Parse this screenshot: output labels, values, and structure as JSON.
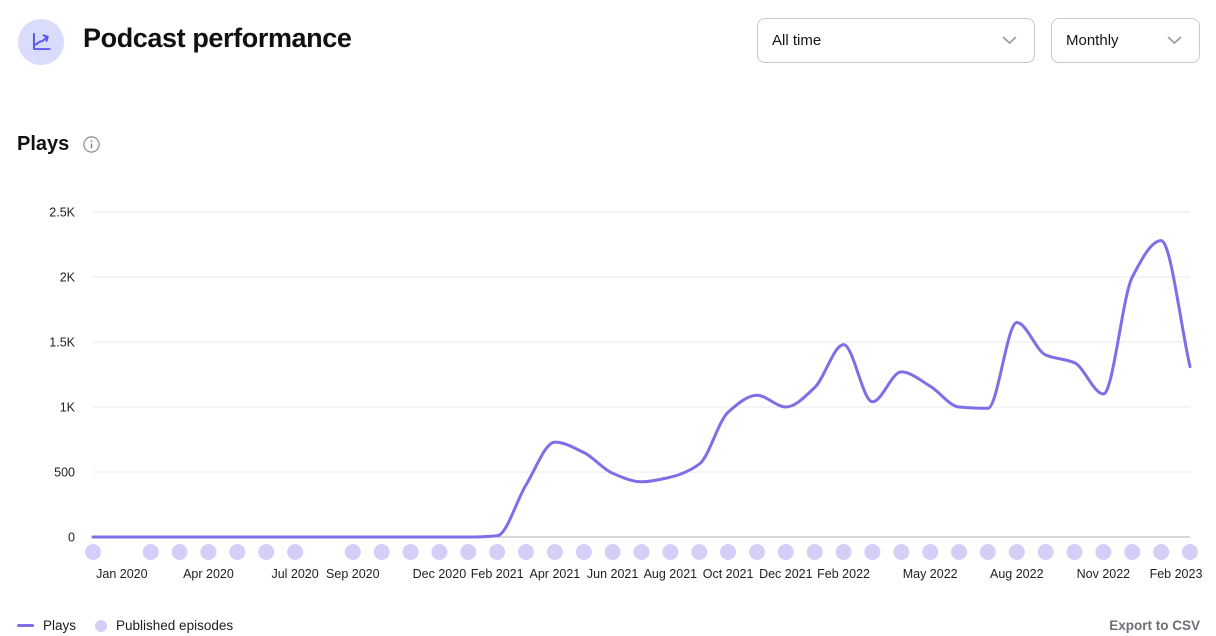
{
  "header": {
    "title": "Podcast performance",
    "range_select": {
      "value": "All time"
    },
    "granularity_select": {
      "value": "Monthly"
    }
  },
  "section": {
    "title": "Plays"
  },
  "legend": {
    "plays_label": "Plays",
    "episodes_label": "Published episodes"
  },
  "export_label": "Export to CSV",
  "colors": {
    "line": "#7C6FE8",
    "episode_dot": "#D6CEF7",
    "grid": "#EAEAEA",
    "zero_axis": "#AFAFAF",
    "axis_text": "#222222",
    "icon_bg": "#D9DCFA",
    "icon_fg": "#5A58EE",
    "chevron": "#9A9A9A",
    "muted_text": "#6E6E76"
  },
  "chart_data": {
    "type": "line",
    "title": "Plays",
    "xlabel": "",
    "ylabel": "Plays",
    "ylim": [
      0,
      2500
    ],
    "grid": "horizontal",
    "legend_position": "bottom-left",
    "x": [
      "Dec 2019",
      "Jan 2020",
      "Feb 2020",
      "Mar 2020",
      "Apr 2020",
      "May 2020",
      "Jun 2020",
      "Jul 2020",
      "Aug 2020",
      "Sep 2020",
      "Oct 2020",
      "Nov 2020",
      "Dec 2020",
      "Jan 2021",
      "Feb 2021",
      "Mar 2021",
      "Apr 2021",
      "May 2021",
      "Jun 2021",
      "Jul 2021",
      "Aug 2021",
      "Sep 2021",
      "Oct 2021",
      "Nov 2021",
      "Dec 2021",
      "Jan 2022",
      "Feb 2022",
      "Mar 2022",
      "Apr 2022",
      "May 2022",
      "Jun 2022",
      "Jul 2022",
      "Aug 2022",
      "Sep 2022",
      "Oct 2022",
      "Nov 2022",
      "Dec 2022",
      "Jan 2023",
      "Feb 2023"
    ],
    "series": [
      {
        "name": "Plays",
        "values": [
          0,
          0,
          0,
          0,
          0,
          0,
          0,
          0,
          0,
          0,
          0,
          0,
          0,
          0,
          10,
          400,
          730,
          650,
          490,
          425,
          460,
          560,
          960,
          1090,
          1000,
          1150,
          1480,
          1040,
          1270,
          1160,
          1000,
          990,
          1650,
          1400,
          1340,
          1100,
          2000,
          2280,
          1310
        ]
      }
    ],
    "published_episodes": [
      1,
      0,
      1,
      1,
      1,
      1,
      1,
      1,
      0,
      1,
      1,
      1,
      1,
      1,
      1,
      1,
      1,
      1,
      1,
      1,
      1,
      1,
      1,
      1,
      1,
      1,
      1,
      1,
      1,
      1,
      1,
      1,
      1,
      1,
      1,
      1,
      1,
      1,
      1
    ],
    "x_ticks": [
      {
        "label": "Jan 2020",
        "i": 1
      },
      {
        "label": "Apr 2020",
        "i": 4
      },
      {
        "label": "Jul 2020",
        "i": 7
      },
      {
        "label": "Sep 2020",
        "i": 9
      },
      {
        "label": "Dec 2020",
        "i": 12
      },
      {
        "label": "Feb 2021",
        "i": 14
      },
      {
        "label": "Apr 2021",
        "i": 16
      },
      {
        "label": "Jun 2021",
        "i": 18
      },
      {
        "label": "Aug 2021",
        "i": 20
      },
      {
        "label": "Oct 2021",
        "i": 22
      },
      {
        "label": "Dec 2021",
        "i": 24
      },
      {
        "label": "Feb 2022",
        "i": 26
      },
      {
        "label": "May 2022",
        "i": 29
      },
      {
        "label": "Aug 2022",
        "i": 32
      },
      {
        "label": "Nov 2022",
        "i": 35
      },
      {
        "label": "Feb 2023",
        "i": 38
      }
    ],
    "y_ticks": [
      {
        "v": 0,
        "label": "0"
      },
      {
        "v": 500,
        "label": "500"
      },
      {
        "v": 1000,
        "label": "1K"
      },
      {
        "v": 1500,
        "label": "1.5K"
      },
      {
        "v": 2000,
        "label": "2K"
      },
      {
        "v": 2500,
        "label": "2.5K"
      }
    ]
  }
}
